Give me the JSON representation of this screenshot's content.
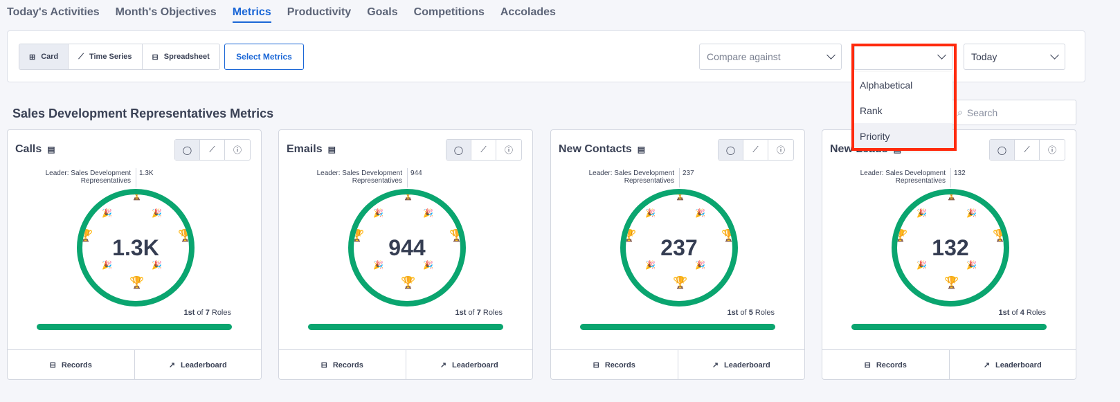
{
  "tabs": [
    "Today's Activities",
    "Month's Objectives",
    "Metrics",
    "Productivity",
    "Goals",
    "Competitions",
    "Accolades"
  ],
  "active_tab": "Metrics",
  "toolbar": {
    "views": [
      "Card",
      "Time Series",
      "Spreadsheet"
    ],
    "selected_view": "Card",
    "select_metrics": "Select Metrics",
    "compare_placeholder": "Compare against",
    "sort_value": "",
    "period": "Today"
  },
  "sort_menu": {
    "options": [
      "Alphabetical",
      "Rank",
      "Priority"
    ],
    "highlighted": "Priority"
  },
  "section_title": "Sales Development Representatives Metrics",
  "search_placeholder": "Search",
  "accent": "#0aa56f",
  "highlight_color": "#ff2a0d",
  "cards": [
    {
      "title": "Calls",
      "leader": "Leader: Sales Development Representatives",
      "leader_value": "1.3K",
      "value": "1.3K",
      "rank": "1st",
      "of": "of",
      "total": "7",
      "roles": "Roles",
      "progress": 1.0,
      "records": "Records",
      "leaderboard": "Leaderboard"
    },
    {
      "title": "Emails",
      "leader": "Leader: Sales Development Representatives",
      "leader_value": "944",
      "value": "944",
      "rank": "1st",
      "of": "of",
      "total": "7",
      "roles": "Roles",
      "progress": 1.0,
      "records": "Records",
      "leaderboard": "Leaderboard"
    },
    {
      "title": "New Contacts",
      "leader": "Leader: Sales Development Representatives",
      "leader_value": "237",
      "value": "237",
      "rank": "1st",
      "of": "of",
      "total": "5",
      "roles": "Roles",
      "progress": 1.0,
      "records": "Records",
      "leaderboard": "Leaderboard"
    },
    {
      "title": "New Leads",
      "leader": "Leader: Sales Development Representatives",
      "leader_value": "132",
      "value": "132",
      "rank": "1st",
      "of": "of",
      "total": "4",
      "roles": "Roles",
      "progress": 1.0,
      "records": "Records",
      "leaderboard": "Leaderboard"
    }
  ]
}
